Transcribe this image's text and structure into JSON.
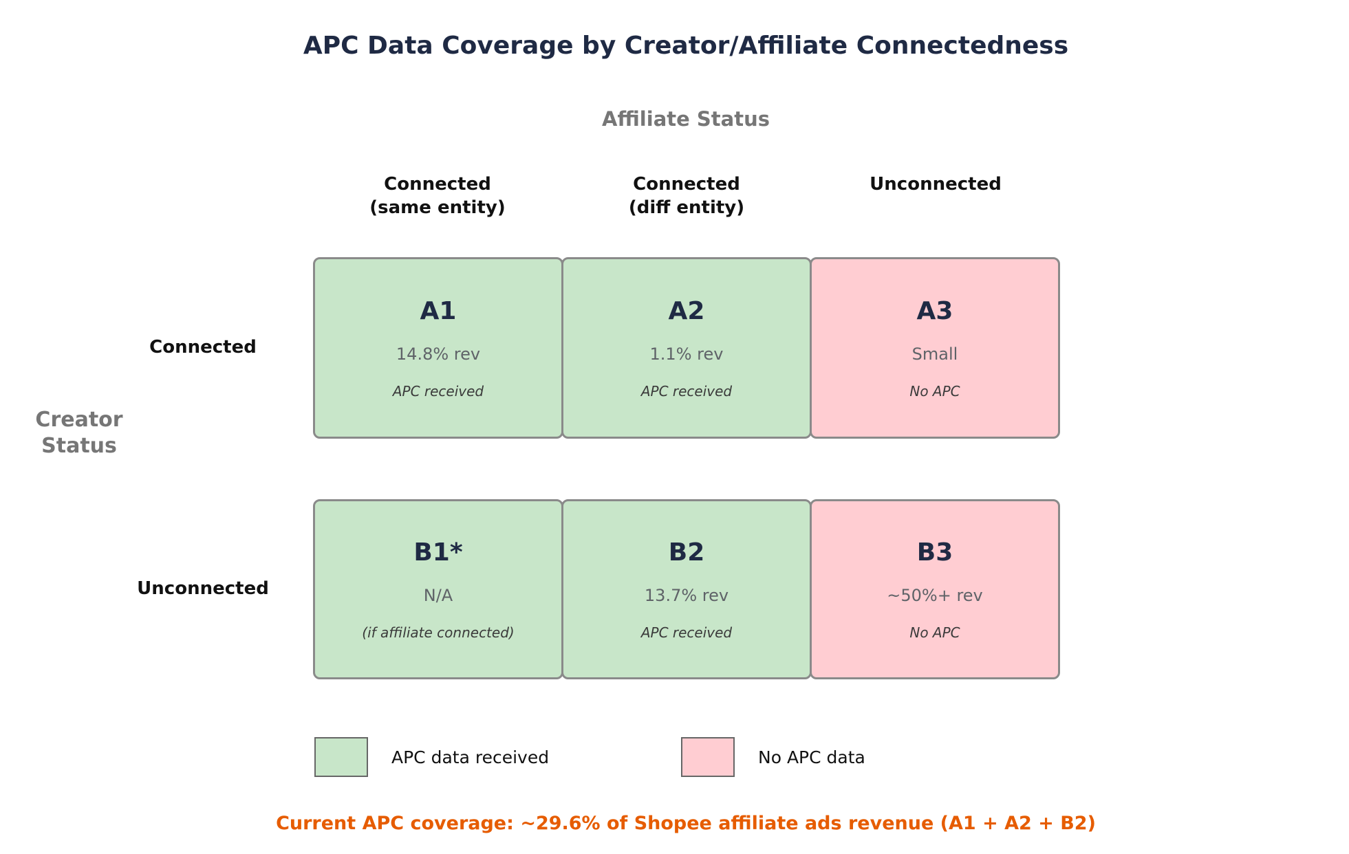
{
  "title": "APC Data Coverage by Creator/Affiliate Connectedness",
  "colors": {
    "cell_green": "#c8e6c9",
    "cell_pink": "#ffcdd2",
    "border_gray": "#8a8a8a",
    "title_navy": "#1f2a44",
    "muted_gray": "#767676",
    "footnote_orange": "#e65c00"
  },
  "axis": {
    "column_group_label": "Affiliate Status",
    "row_group_label_line1": "Creator",
    "row_group_label_line2": "Status",
    "column_headers": [
      {
        "line1": "Connected",
        "line2": "(same entity)"
      },
      {
        "line1": "Connected",
        "line2": "(diff entity)"
      },
      {
        "line1": "Unconnected",
        "line2": ""
      }
    ],
    "row_headers": [
      "Connected",
      "Unconnected"
    ]
  },
  "grid": {
    "rows": [
      {
        "cells": [
          {
            "code": "A1",
            "value": "14.8% rev",
            "note": "APC received",
            "status": "green"
          },
          {
            "code": "A2",
            "value": "1.1% rev",
            "note": "APC received",
            "status": "green"
          },
          {
            "code": "A3",
            "value": "Small",
            "note": "No APC",
            "status": "pink"
          }
        ]
      },
      {
        "cells": [
          {
            "code": "B1*",
            "value": "N/A",
            "note": "(if affiliate connected)",
            "status": "green"
          },
          {
            "code": "B2",
            "value": "13.7% rev",
            "note": "APC received",
            "status": "green"
          },
          {
            "code": "B3",
            "value": "~50%+ rev",
            "note": "No APC",
            "status": "pink"
          }
        ]
      }
    ]
  },
  "legend": [
    {
      "swatch": "green",
      "label": "APC data received"
    },
    {
      "swatch": "pink",
      "label": "No APC data"
    }
  ],
  "footnote": "Current APC coverage: ~29.6% of Shopee affiliate ads revenue (A1 + A2 + B2)"
}
